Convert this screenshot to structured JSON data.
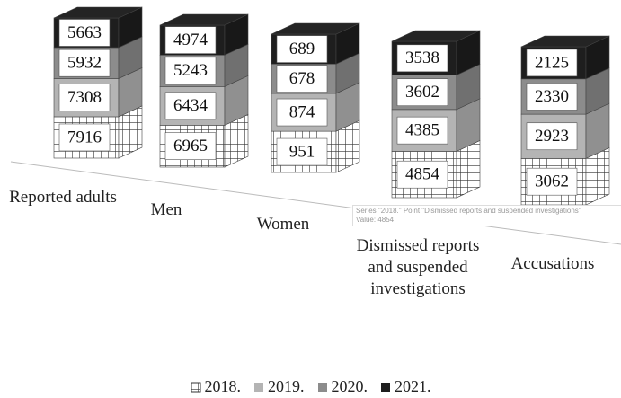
{
  "chart_data": {
    "type": "bar",
    "stacked": true,
    "categories": [
      "Reported adults",
      "Men",
      "Women",
      "Dismissed reports and suspended investigations",
      "Accusations"
    ],
    "series": [
      {
        "name": "2018.",
        "color": "#ffffff",
        "pattern": "grid",
        "values": [
          7916,
          6965,
          951,
          4854,
          3062
        ]
      },
      {
        "name": "2019.",
        "color": "#b4b4b4",
        "values": [
          7308,
          6434,
          874,
          4385,
          2923
        ]
      },
      {
        "name": "2020.",
        "color": "#8c8c8c",
        "values": [
          5932,
          5243,
          678,
          3602,
          2330
        ]
      },
      {
        "name": "2021.",
        "color": "#1e1e1e",
        "values": [
          5663,
          4974,
          689,
          3538,
          2125
        ]
      }
    ],
    "tooltip": [
      "Series \"2018.\" Point \"Dismissed reports and suspended investigations\"",
      "Value: 4854"
    ]
  }
}
